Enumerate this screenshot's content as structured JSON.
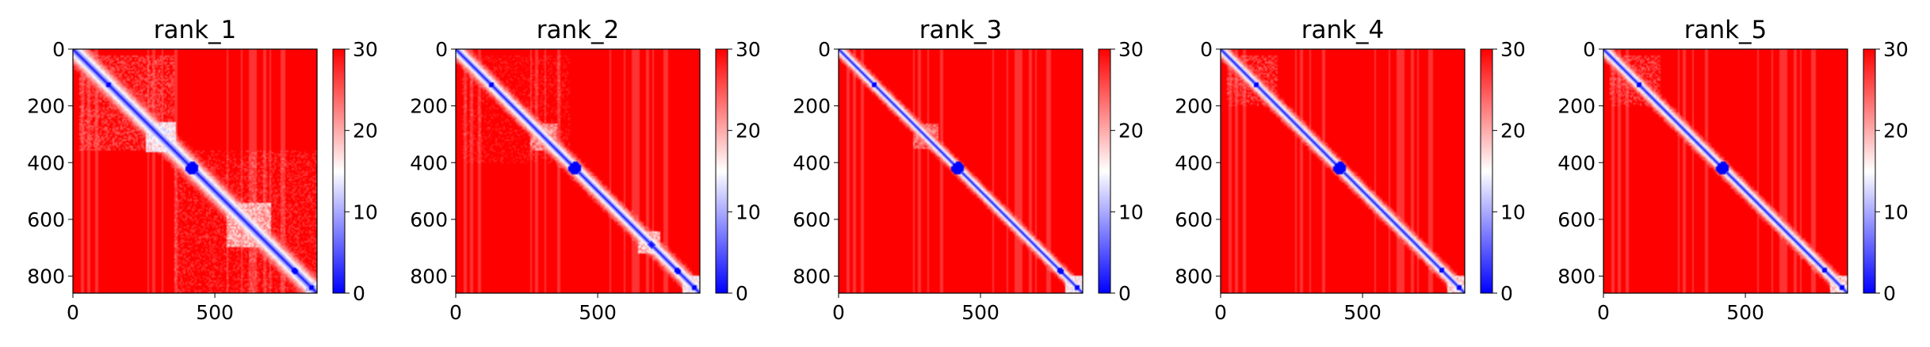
{
  "chart_data": [
    {
      "type": "heatmap",
      "title": "rank_1",
      "xlabel": "",
      "ylabel": "",
      "xlim": [
        0,
        860
      ],
      "ylim": [
        860,
        0
      ],
      "xticks": [
        0,
        500
      ],
      "yticks": [
        0,
        200,
        400,
        600,
        800
      ],
      "colorbar": {
        "ticks": [
          0,
          10,
          20,
          30
        ],
        "range": [
          0,
          30
        ],
        "colormap": "bwr"
      },
      "background_value": 30,
      "features": {
        "diagonal_value": 0,
        "halo": 80,
        "low_blocks": [
          {
            "x0": 255,
            "x1": 365,
            "y0": 255,
            "y1": 365,
            "value": 12
          },
          {
            "x0": 540,
            "x1": 700,
            "y0": 540,
            "y1": 700,
            "value": 16
          },
          {
            "x0": 820,
            "x1": 860,
            "y0": 820,
            "y1": 860,
            "value": 10
          },
          {
            "x0": 20,
            "x1": 360,
            "y0": 20,
            "y1": 360,
            "value": 24
          },
          {
            "x0": 360,
            "x1": 860,
            "y0": 360,
            "y1": 860,
            "value": 26
          }
        ],
        "blobs": [
          {
            "x": 125,
            "y": 125,
            "r": 10,
            "value": 0
          },
          {
            "x": 420,
            "y": 420,
            "r": 22,
            "value": 0
          },
          {
            "x": 780,
            "y": 780,
            "r": 12,
            "value": 0
          },
          {
            "x": 840,
            "y": 840,
            "r": 10,
            "value": 0
          }
        ]
      }
    },
    {
      "type": "heatmap",
      "title": "rank_2",
      "xlabel": "",
      "ylabel": "",
      "xlim": [
        0,
        860
      ],
      "ylim": [
        860,
        0
      ],
      "xticks": [
        0,
        500
      ],
      "yticks": [
        0,
        200,
        400,
        600,
        800
      ],
      "colorbar": {
        "ticks": [
          0,
          10,
          20,
          30
        ],
        "range": [
          0,
          30
        ],
        "colormap": "bwr"
      },
      "background_value": 30,
      "features": {
        "diagonal_value": 0,
        "halo": 60,
        "low_blocks": [
          {
            "x0": 260,
            "x1": 360,
            "y0": 260,
            "y1": 360,
            "value": 18
          },
          {
            "x0": 640,
            "x1": 720,
            "y0": 640,
            "y1": 720,
            "value": 15
          },
          {
            "x0": 800,
            "x1": 860,
            "y0": 800,
            "y1": 860,
            "value": 12
          },
          {
            "x0": 20,
            "x1": 400,
            "y0": 20,
            "y1": 400,
            "value": 27
          }
        ],
        "blobs": [
          {
            "x": 125,
            "y": 125,
            "r": 10,
            "value": 0
          },
          {
            "x": 420,
            "y": 420,
            "r": 22,
            "value": 0
          },
          {
            "x": 690,
            "y": 690,
            "r": 12,
            "value": 2
          },
          {
            "x": 780,
            "y": 780,
            "r": 12,
            "value": 0
          },
          {
            "x": 840,
            "y": 840,
            "r": 10,
            "value": 0
          }
        ]
      }
    },
    {
      "type": "heatmap",
      "title": "rank_3",
      "xlabel": "",
      "ylabel": "",
      "xlim": [
        0,
        860
      ],
      "ylim": [
        860,
        0
      ],
      "xticks": [
        0,
        500
      ],
      "yticks": [
        0,
        200,
        400,
        600,
        800
      ],
      "colorbar": {
        "ticks": [
          0,
          10,
          20,
          30
        ],
        "range": [
          0,
          30
        ],
        "colormap": "bwr"
      },
      "background_value": 30,
      "features": {
        "diagonal_value": 0,
        "halo": 45,
        "low_blocks": [
          {
            "x0": 260,
            "x1": 350,
            "y0": 260,
            "y1": 350,
            "value": 20
          },
          {
            "x0": 800,
            "x1": 860,
            "y0": 800,
            "y1": 860,
            "value": 12
          }
        ],
        "blobs": [
          {
            "x": 125,
            "y": 125,
            "r": 9,
            "value": 0
          },
          {
            "x": 420,
            "y": 420,
            "r": 22,
            "value": 0
          },
          {
            "x": 780,
            "y": 780,
            "r": 12,
            "value": 0
          },
          {
            "x": 840,
            "y": 840,
            "r": 10,
            "value": 0
          }
        ]
      }
    },
    {
      "type": "heatmap",
      "title": "rank_4",
      "xlabel": "",
      "ylabel": "",
      "xlim": [
        0,
        860
      ],
      "ylim": [
        860,
        0
      ],
      "xticks": [
        0,
        500
      ],
      "yticks": [
        0,
        200,
        400,
        600,
        800
      ],
      "colorbar": {
        "ticks": [
          0,
          10,
          20,
          30
        ],
        "range": [
          0,
          30
        ],
        "colormap": "bwr"
      },
      "background_value": 30,
      "features": {
        "diagonal_value": 0,
        "halo": 50,
        "low_blocks": [
          {
            "x0": 20,
            "x1": 200,
            "y0": 20,
            "y1": 200,
            "value": 24
          },
          {
            "x0": 800,
            "x1": 860,
            "y0": 800,
            "y1": 860,
            "value": 14
          }
        ],
        "blobs": [
          {
            "x": 125,
            "y": 125,
            "r": 9,
            "value": 0
          },
          {
            "x": 420,
            "y": 420,
            "r": 22,
            "value": 0
          },
          {
            "x": 780,
            "y": 780,
            "r": 10,
            "value": 0
          },
          {
            "x": 840,
            "y": 840,
            "r": 8,
            "value": 0
          }
        ]
      }
    },
    {
      "type": "heatmap",
      "title": "rank_5",
      "xlabel": "",
      "ylabel": "",
      "xlim": [
        0,
        860
      ],
      "ylim": [
        860,
        0
      ],
      "xticks": [
        0,
        500
      ],
      "yticks": [
        0,
        200,
        400,
        600,
        800
      ],
      "colorbar": {
        "ticks": [
          0,
          10,
          20,
          30
        ],
        "range": [
          0,
          30
        ],
        "colormap": "bwr"
      },
      "background_value": 30,
      "features": {
        "diagonal_value": 0,
        "halo": 50,
        "low_blocks": [
          {
            "x0": 20,
            "x1": 200,
            "y0": 20,
            "y1": 200,
            "value": 24
          },
          {
            "x0": 800,
            "x1": 860,
            "y0": 800,
            "y1": 860,
            "value": 14
          }
        ],
        "blobs": [
          {
            "x": 125,
            "y": 125,
            "r": 9,
            "value": 0
          },
          {
            "x": 420,
            "y": 420,
            "r": 22,
            "value": 0
          },
          {
            "x": 780,
            "y": 780,
            "r": 10,
            "value": 0
          },
          {
            "x": 840,
            "y": 840,
            "r": 8,
            "value": 0
          }
        ]
      }
    }
  ]
}
